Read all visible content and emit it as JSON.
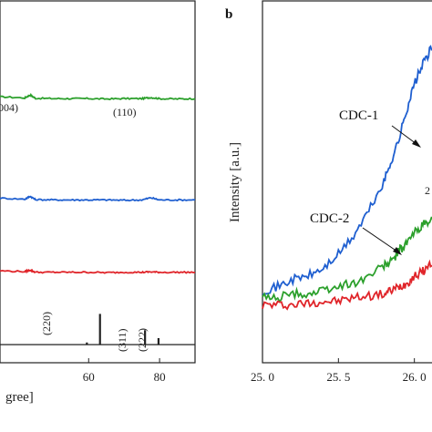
{
  "chart_data": [
    {
      "type": "line",
      "panel": "a",
      "xlabel": "gree]",
      "xlim": [
        35,
        90
      ],
      "x_ticks": [
        60,
        80
      ],
      "ylabel": "",
      "grid": false,
      "annotations": {
        "peak_002_partial": "004)",
        "peak_110": "(110)",
        "ref_220": "(220)",
        "ref_311": "(311)",
        "ref_222": "(222)"
      },
      "series": [
        {
          "color": "#2ca02c",
          "baseline": 0.73,
          "x": [
            35,
            42,
            43.5,
            45,
            50,
            55,
            60,
            65,
            70,
            75,
            77.5,
            80,
            85,
            90
          ],
          "y": [
            0.735,
            0.732,
            0.74,
            0.731,
            0.73,
            0.73,
            0.73,
            0.729,
            0.73,
            0.73,
            0.733,
            0.73,
            0.729,
            0.73
          ]
        },
        {
          "color": "#1f5fd0",
          "baseline": 0.45,
          "x": [
            35,
            42,
            43.5,
            45,
            50,
            55,
            60,
            65,
            70,
            75,
            77.5,
            80,
            85,
            90
          ],
          "y": [
            0.455,
            0.452,
            0.46,
            0.451,
            0.45,
            0.45,
            0.45,
            0.45,
            0.449,
            0.45,
            0.456,
            0.45,
            0.45,
            0.45
          ]
        },
        {
          "color": "#e0252a",
          "baseline": 0.25,
          "x": [
            35,
            42,
            43.5,
            45,
            50,
            55,
            60,
            65,
            70,
            75,
            77.5,
            80,
            85,
            90
          ],
          "y": [
            0.254,
            0.252,
            0.256,
            0.25,
            0.25,
            0.25,
            0.25,
            0.249,
            0.25,
            0.25,
            0.251,
            0.25,
            0.25,
            0.25
          ]
        }
      ],
      "reference_pattern": {
        "color": "#222222",
        "baseline": 0.05,
        "peaks": [
          {
            "x": 63.2,
            "height": 0.085
          },
          {
            "x": 75.9,
            "height": 0.04
          },
          {
            "x": 79.7,
            "height": 0.018
          },
          {
            "x": 59.5,
            "height": 0.006
          }
        ]
      }
    },
    {
      "type": "line",
      "panel": "b",
      "ylabel": "Intensity [a.u.]",
      "xlim": [
        25.0,
        26.2
      ],
      "x_ticks": [
        25.0,
        25.5,
        26.0
      ],
      "x_tick_labels": [
        "25. 0",
        "25. 5",
        "26. 0"
      ],
      "grid": false,
      "labels": {
        "cdc1": "CDC-1",
        "cdc2": "CDC-2",
        "partial": "2"
      },
      "series": [
        {
          "name": "CDC-1",
          "color": "#1f5fd0",
          "x": [
            25.0,
            25.1,
            25.2,
            25.3,
            25.4,
            25.5,
            25.6,
            25.7,
            25.8,
            25.85,
            25.9,
            25.95,
            26.0,
            26.05,
            26.1,
            26.15,
            26.2
          ],
          "y": [
            0.2,
            0.21,
            0.23,
            0.24,
            0.26,
            0.3,
            0.35,
            0.42,
            0.5,
            0.56,
            0.62,
            0.7,
            0.77,
            0.82,
            0.86,
            0.88,
            0.9
          ]
        },
        {
          "name": "CDC-2",
          "color": "#2ca02c",
          "x": [
            25.0,
            25.1,
            25.2,
            25.3,
            25.4,
            25.5,
            25.6,
            25.7,
            25.8,
            25.85,
            25.9,
            25.95,
            26.0,
            26.05,
            26.1,
            26.15,
            26.2
          ],
          "y": [
            0.18,
            0.18,
            0.19,
            0.19,
            0.2,
            0.21,
            0.22,
            0.24,
            0.27,
            0.28,
            0.31,
            0.33,
            0.36,
            0.38,
            0.39,
            0.4,
            0.41
          ]
        },
        {
          "name": "",
          "color": "#e0252a",
          "x": [
            25.0,
            25.1,
            25.2,
            25.3,
            25.4,
            25.5,
            25.6,
            25.7,
            25.8,
            25.85,
            25.9,
            25.95,
            26.0,
            26.05,
            26.1,
            26.15,
            26.2
          ],
          "y": [
            0.16,
            0.16,
            0.16,
            0.165,
            0.17,
            0.17,
            0.18,
            0.185,
            0.19,
            0.2,
            0.21,
            0.22,
            0.24,
            0.25,
            0.27,
            0.29,
            0.3
          ]
        }
      ]
    }
  ],
  "panel_letter_b": "b"
}
